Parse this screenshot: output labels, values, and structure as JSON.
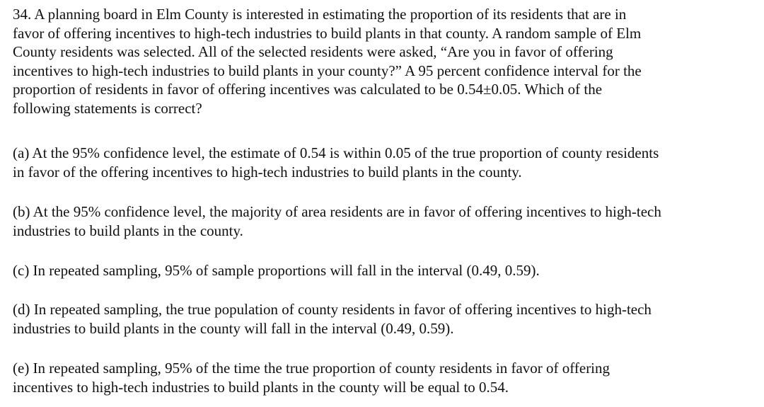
{
  "question": {
    "lines": [
      "34.  A planning board in Elm County is interested in estimating the proportion of its residents that are in",
      "favor of offering incentives to high-tech industries to build plants in that county.  A random sample of Elm",
      "County residents was selected.  All of the selected residents were asked, “Are you in favor of offering",
      "incentives to high-tech industries to build plants in your county?”  A 95 percent confidence interval for the",
      "proportion of residents in favor of offering incentives was calculated to be 0.54±0.05.  Which of the",
      "following statements is correct?"
    ]
  },
  "options": [
    {
      "lines": [
        "(a) At the 95% confidence level, the estimate of 0.54 is within 0.05 of the true proportion of county residents",
        "in favor of the offering incentives to high-tech industries to build plants in the county."
      ]
    },
    {
      "lines": [
        "(b) At the 95% confidence level, the majority of area residents are in favor of offering incentives to high-tech",
        "industries to build plants in the county."
      ]
    },
    {
      "lines": [
        "(c) In repeated sampling, 95% of sample proportions will fall in the interval (0.49, 0.59)."
      ]
    },
    {
      "lines": [
        "(d) In repeated sampling, the true population of county residents in favor of offering incentives to high-tech",
        "industries to build plants in the county will fall in the interval (0.49, 0.59)."
      ]
    },
    {
      "lines": [
        "(e) In repeated sampling, 95% of the time the true proportion of county residents in favor of offering",
        "incentives to high-tech industries to build plants in the county will be equal to 0.54."
      ]
    }
  ]
}
